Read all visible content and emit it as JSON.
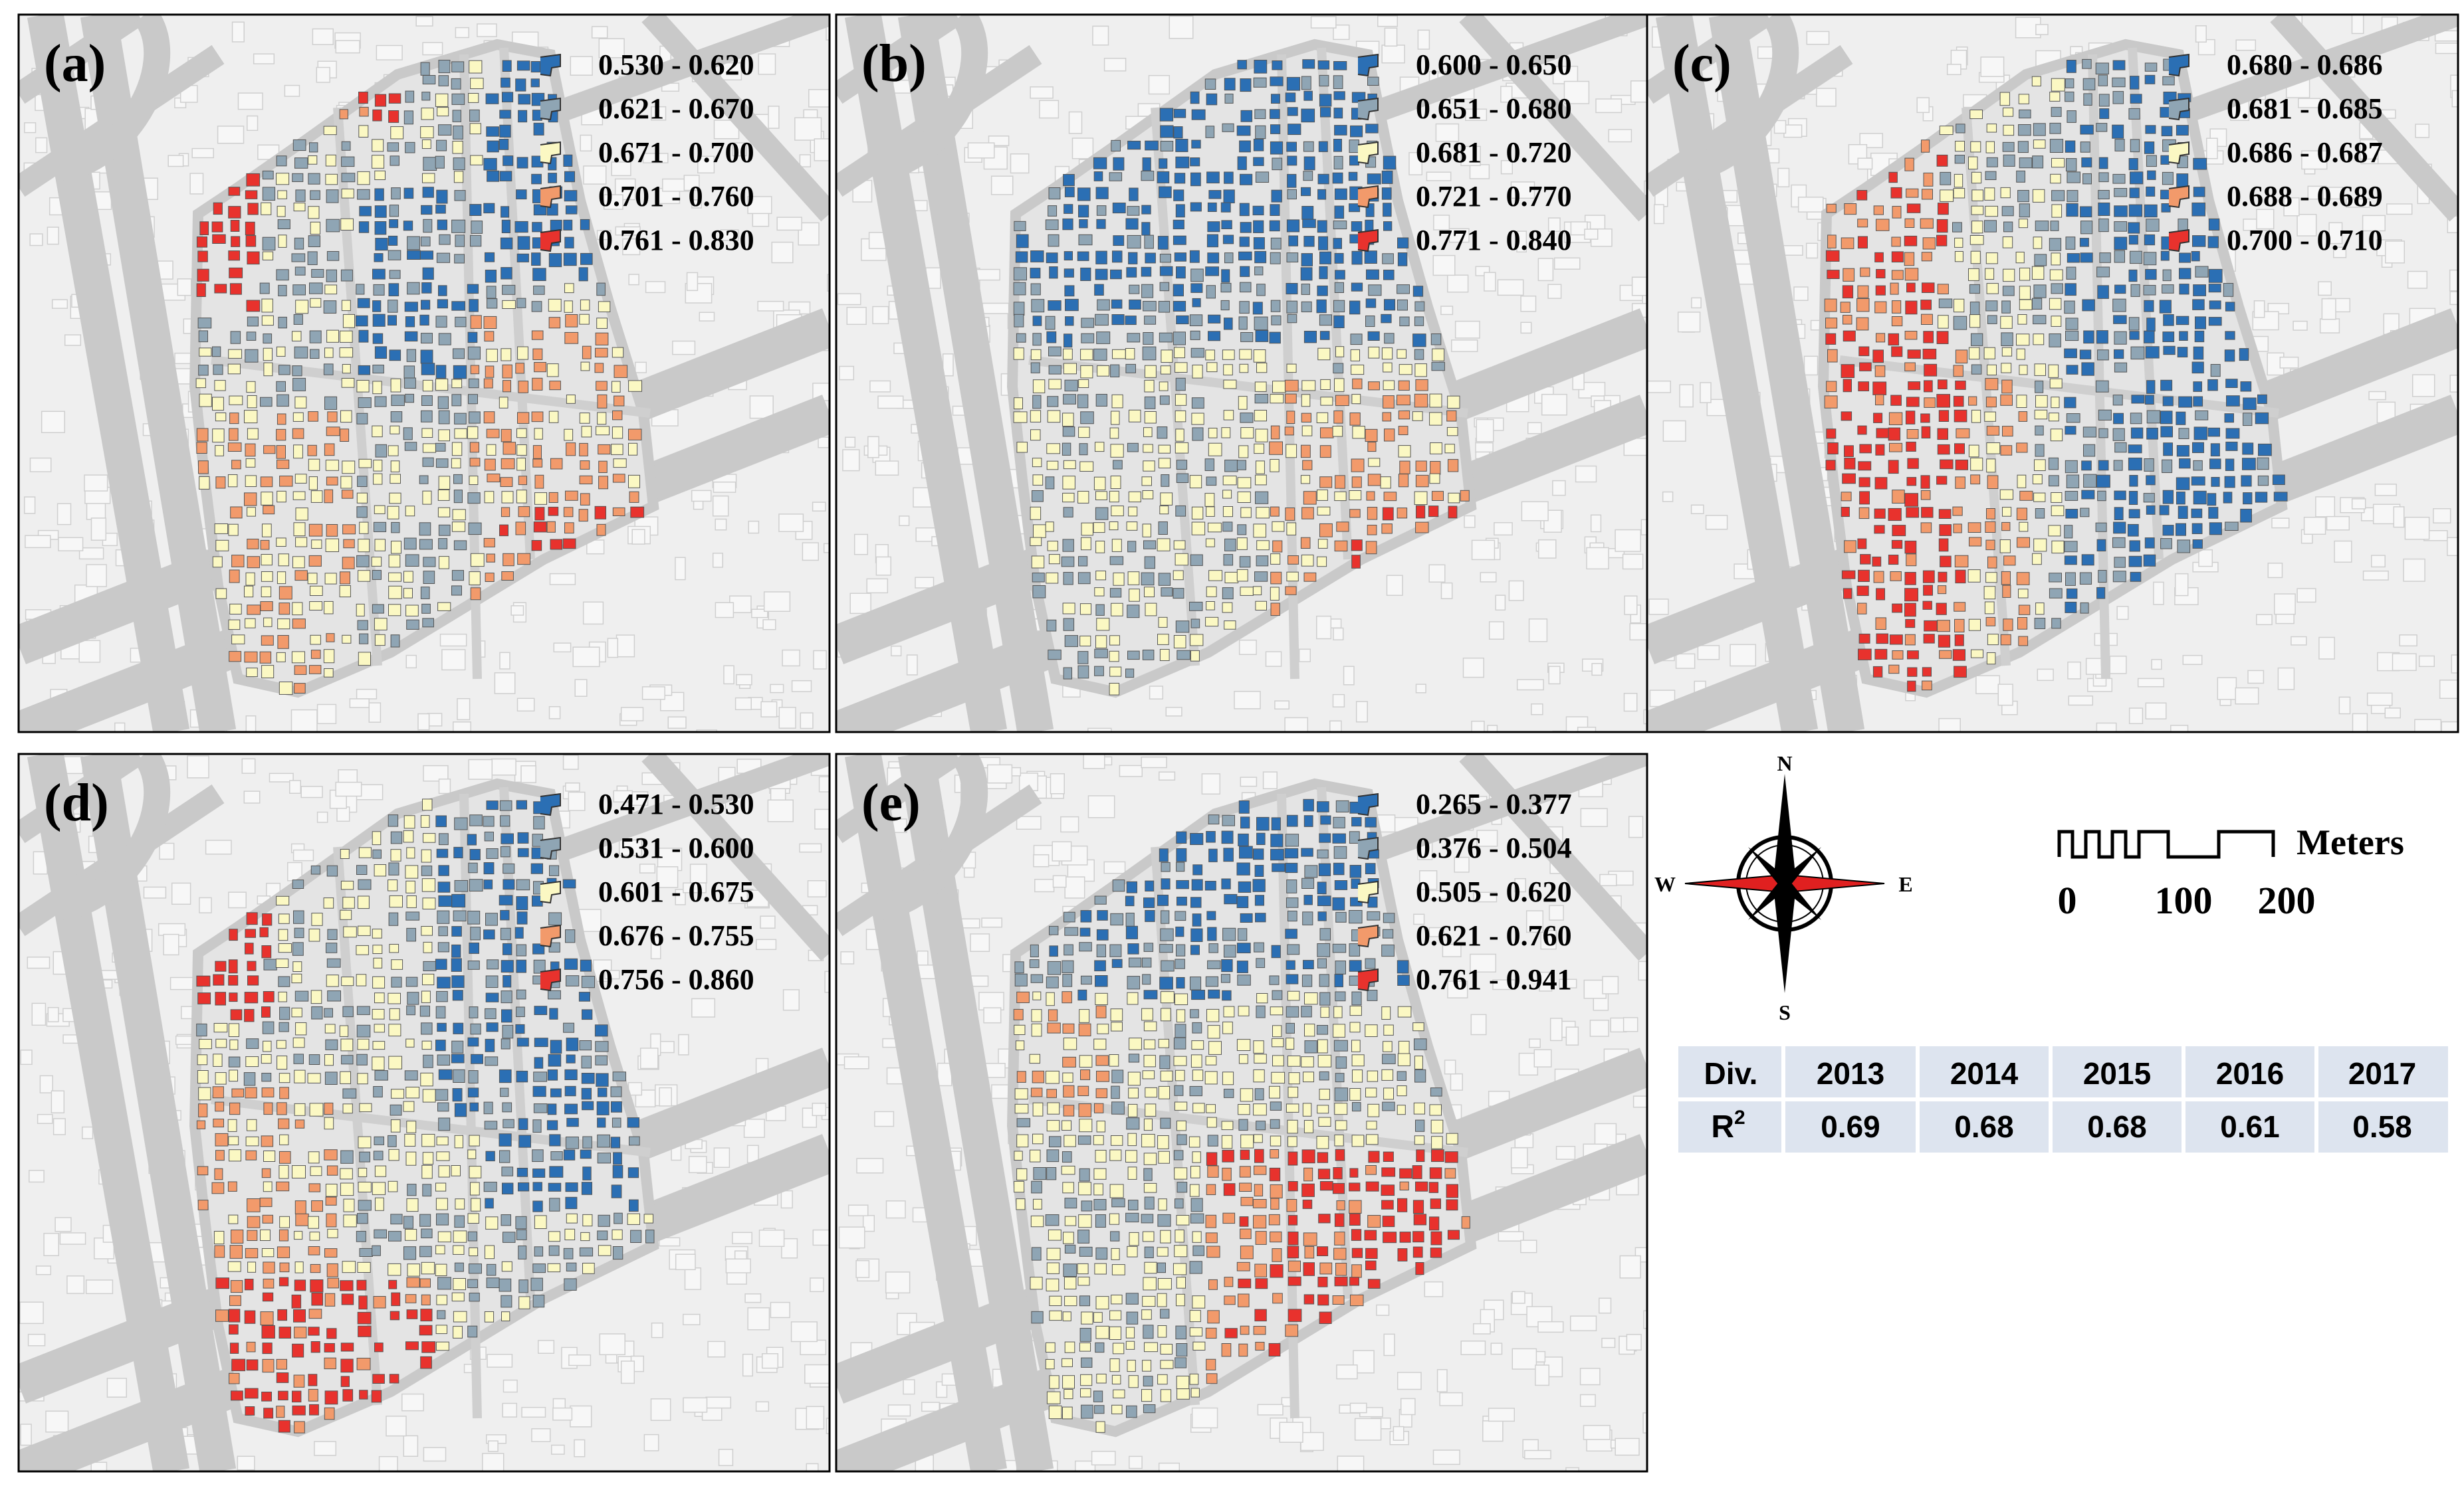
{
  "figure": {
    "colors": {
      "blue": "#2b6fb4",
      "gray": "#8fa5b4",
      "yellow": "#fbf8c3",
      "orange": "#f29a6b",
      "red": "#e8322d",
      "road": "#c9c9c9",
      "block": "#efefef",
      "base_building": "#f7f7f7"
    }
  },
  "panels": [
    {
      "label": "(a)",
      "legend": [
        "0.530 - 0.620",
        "0.621 - 0.670",
        "0.671 - 0.700",
        "0.701 - 0.760",
        "0.761 - 0.830"
      ]
    },
    {
      "label": "(b)",
      "legend": [
        "0.600 - 0.650",
        "0.651 - 0.680",
        "0.681 - 0.720",
        "0.721 - 0.770",
        "0.771 - 0.840"
      ]
    },
    {
      "label": "(c)",
      "legend": [
        "0.680 - 0.686",
        "0.681 - 0.685",
        "0.686 - 0.687",
        "0.688 - 0.689",
        "0.700 - 0.710"
      ]
    },
    {
      "label": "(d)",
      "legend": [
        "0.471 - 0.530",
        "0.531 - 0.600",
        "0.601 - 0.675",
        "0.676 - 0.755",
        "0.756 - 0.860"
      ]
    },
    {
      "label": "(e)",
      "legend": [
        "0.265 - 0.377",
        "0.376 - 0.504",
        "0.505 - 0.620",
        "0.621 - 0.760",
        "0.761 - 0.941"
      ]
    }
  ],
  "compass": {
    "n": "N",
    "s": "S",
    "e": "E",
    "w": "W"
  },
  "scale_bar": {
    "unit": "Meters",
    "ticks": [
      "0",
      "100",
      "200"
    ]
  },
  "r2_table": {
    "headers": [
      "Div.",
      "2013",
      "2014",
      "2015",
      "2016",
      "2017"
    ],
    "row_label": "R",
    "row_label_sup": "2",
    "values": [
      "0.69",
      "0.68",
      "0.68",
      "0.61",
      "0.58"
    ]
  }
}
